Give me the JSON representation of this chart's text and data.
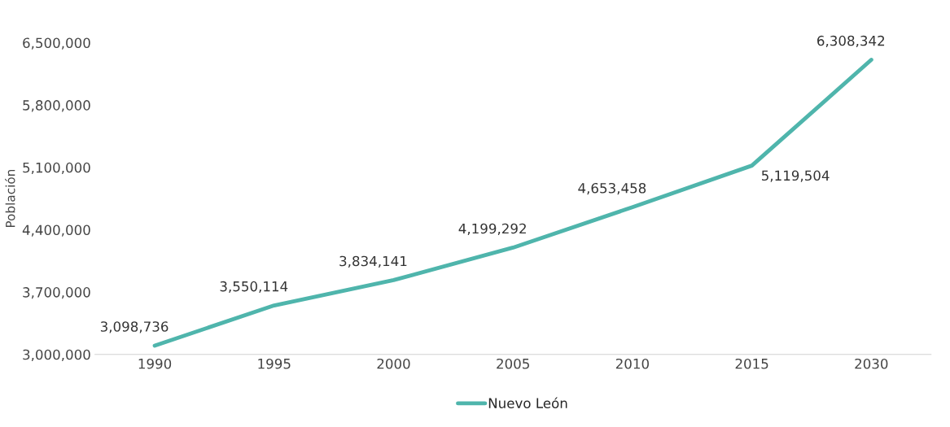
{
  "chart_data": {
    "type": "line",
    "ylabel": "Población",
    "categories": [
      "1990",
      "1995",
      "2000",
      "2005",
      "2010",
      "2015",
      "2030"
    ],
    "series": [
      {
        "name": "Nuevo León",
        "color": "#4fb5ac",
        "values": [
          3098736,
          3550114,
          3834141,
          4199292,
          4653458,
          5119504,
          6308342
        ],
        "value_labels": [
          "3,098,736",
          "3,550,114",
          "3,834,141",
          "4,199,292",
          "4,653,458",
          "5,119,504",
          "6,308,342"
        ]
      }
    ],
    "ylim": [
      3000000,
      6500000
    ],
    "yticks": [
      {
        "value": 3000000,
        "label": "3,000,000"
      },
      {
        "value": 3700000,
        "label": "3,700,000"
      },
      {
        "value": 4400000,
        "label": "4,400,000"
      },
      {
        "value": 5100000,
        "label": "5,100,000"
      },
      {
        "value": 5800000,
        "label": "5,800,000"
      },
      {
        "value": 6500000,
        "label": "6,500,000"
      }
    ],
    "legend": "bottom",
    "grid": false,
    "marker": "none",
    "line_style": "solid"
  }
}
